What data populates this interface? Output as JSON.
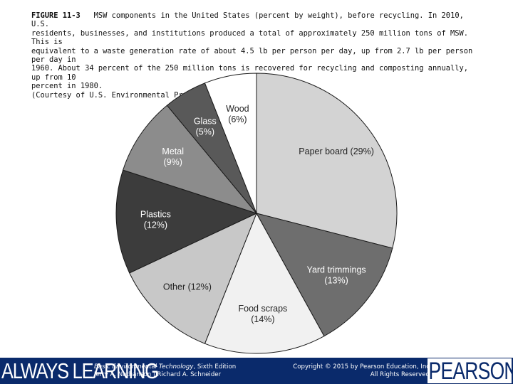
{
  "caption": {
    "figure_label": "FIGURE 11-3",
    "lines": [
      "MSW components in the United States (percent by weight), before recycling. In 2010, U.S.",
      "residents, businesses, and institutions produced a total of approximately 250 million tons of MSW. This is",
      "equivalent to a waste generation rate of about 4.5 lb per person per day, up from 2.7 lb per person per day in",
      "1960. About 34 percent of the 250 million tons is recovered for recycling and composting annually, up from 10",
      "percent in 1980.",
      "(Courtesy of U.S. Environmental Protection Agency.)"
    ]
  },
  "chart_data": {
    "type": "pie",
    "title": "",
    "start_angle_deg": 0,
    "direction": "clockwise",
    "slices": [
      {
        "name": "Paper board",
        "value": 29,
        "label_lines": [
          "Paper board (29%)"
        ],
        "color": "#d3d3d3",
        "text_color": "#222222"
      },
      {
        "name": "Yard trimmings",
        "value": 13,
        "label_lines": [
          "Yard trimmings",
          "(13%)"
        ],
        "color": "#6e6e6e",
        "text_color": "#ffffff"
      },
      {
        "name": "Food scraps",
        "value": 14,
        "label_lines": [
          "Food scraps",
          "(14%)"
        ],
        "color": "#f1f1f1",
        "text_color": "#222222"
      },
      {
        "name": "Other",
        "value": 12,
        "label_lines": [
          "Other (12%)"
        ],
        "color": "#c8c8c8",
        "text_color": "#222222"
      },
      {
        "name": "Plastics",
        "value": 12,
        "label_lines": [
          "Plastics",
          "(12%)"
        ],
        "color": "#3c3c3c",
        "text_color": "#ffffff"
      },
      {
        "name": "Metal",
        "value": 9,
        "label_lines": [
          "Metal",
          "(9%)"
        ],
        "color": "#8c8c8c",
        "text_color": "#ffffff"
      },
      {
        "name": "Glass",
        "value": 5,
        "label_lines": [
          "Glass",
          "(5%)"
        ],
        "color": "#595959",
        "text_color": "#ffffff"
      },
      {
        "name": "Wood",
        "value": 6,
        "label_lines": [
          "Wood",
          "(6%)"
        ],
        "color": "#ffffff",
        "text_color": "#222222"
      }
    ]
  },
  "footer": {
    "brand_left": "ALWAYS LEARNING",
    "book_title": "Basic Environmental Technology",
    "book_edition": ", Sixth Edition",
    "book_authors": "Jerry A. Nathanson | Richard A. Schneider",
    "copyright": "Copyright © 2015 by Pearson Education, Inc",
    "rights": "All Rights Reserved",
    "brand_right": "PEARSON",
    "bar_color": "#0a2a6b"
  }
}
